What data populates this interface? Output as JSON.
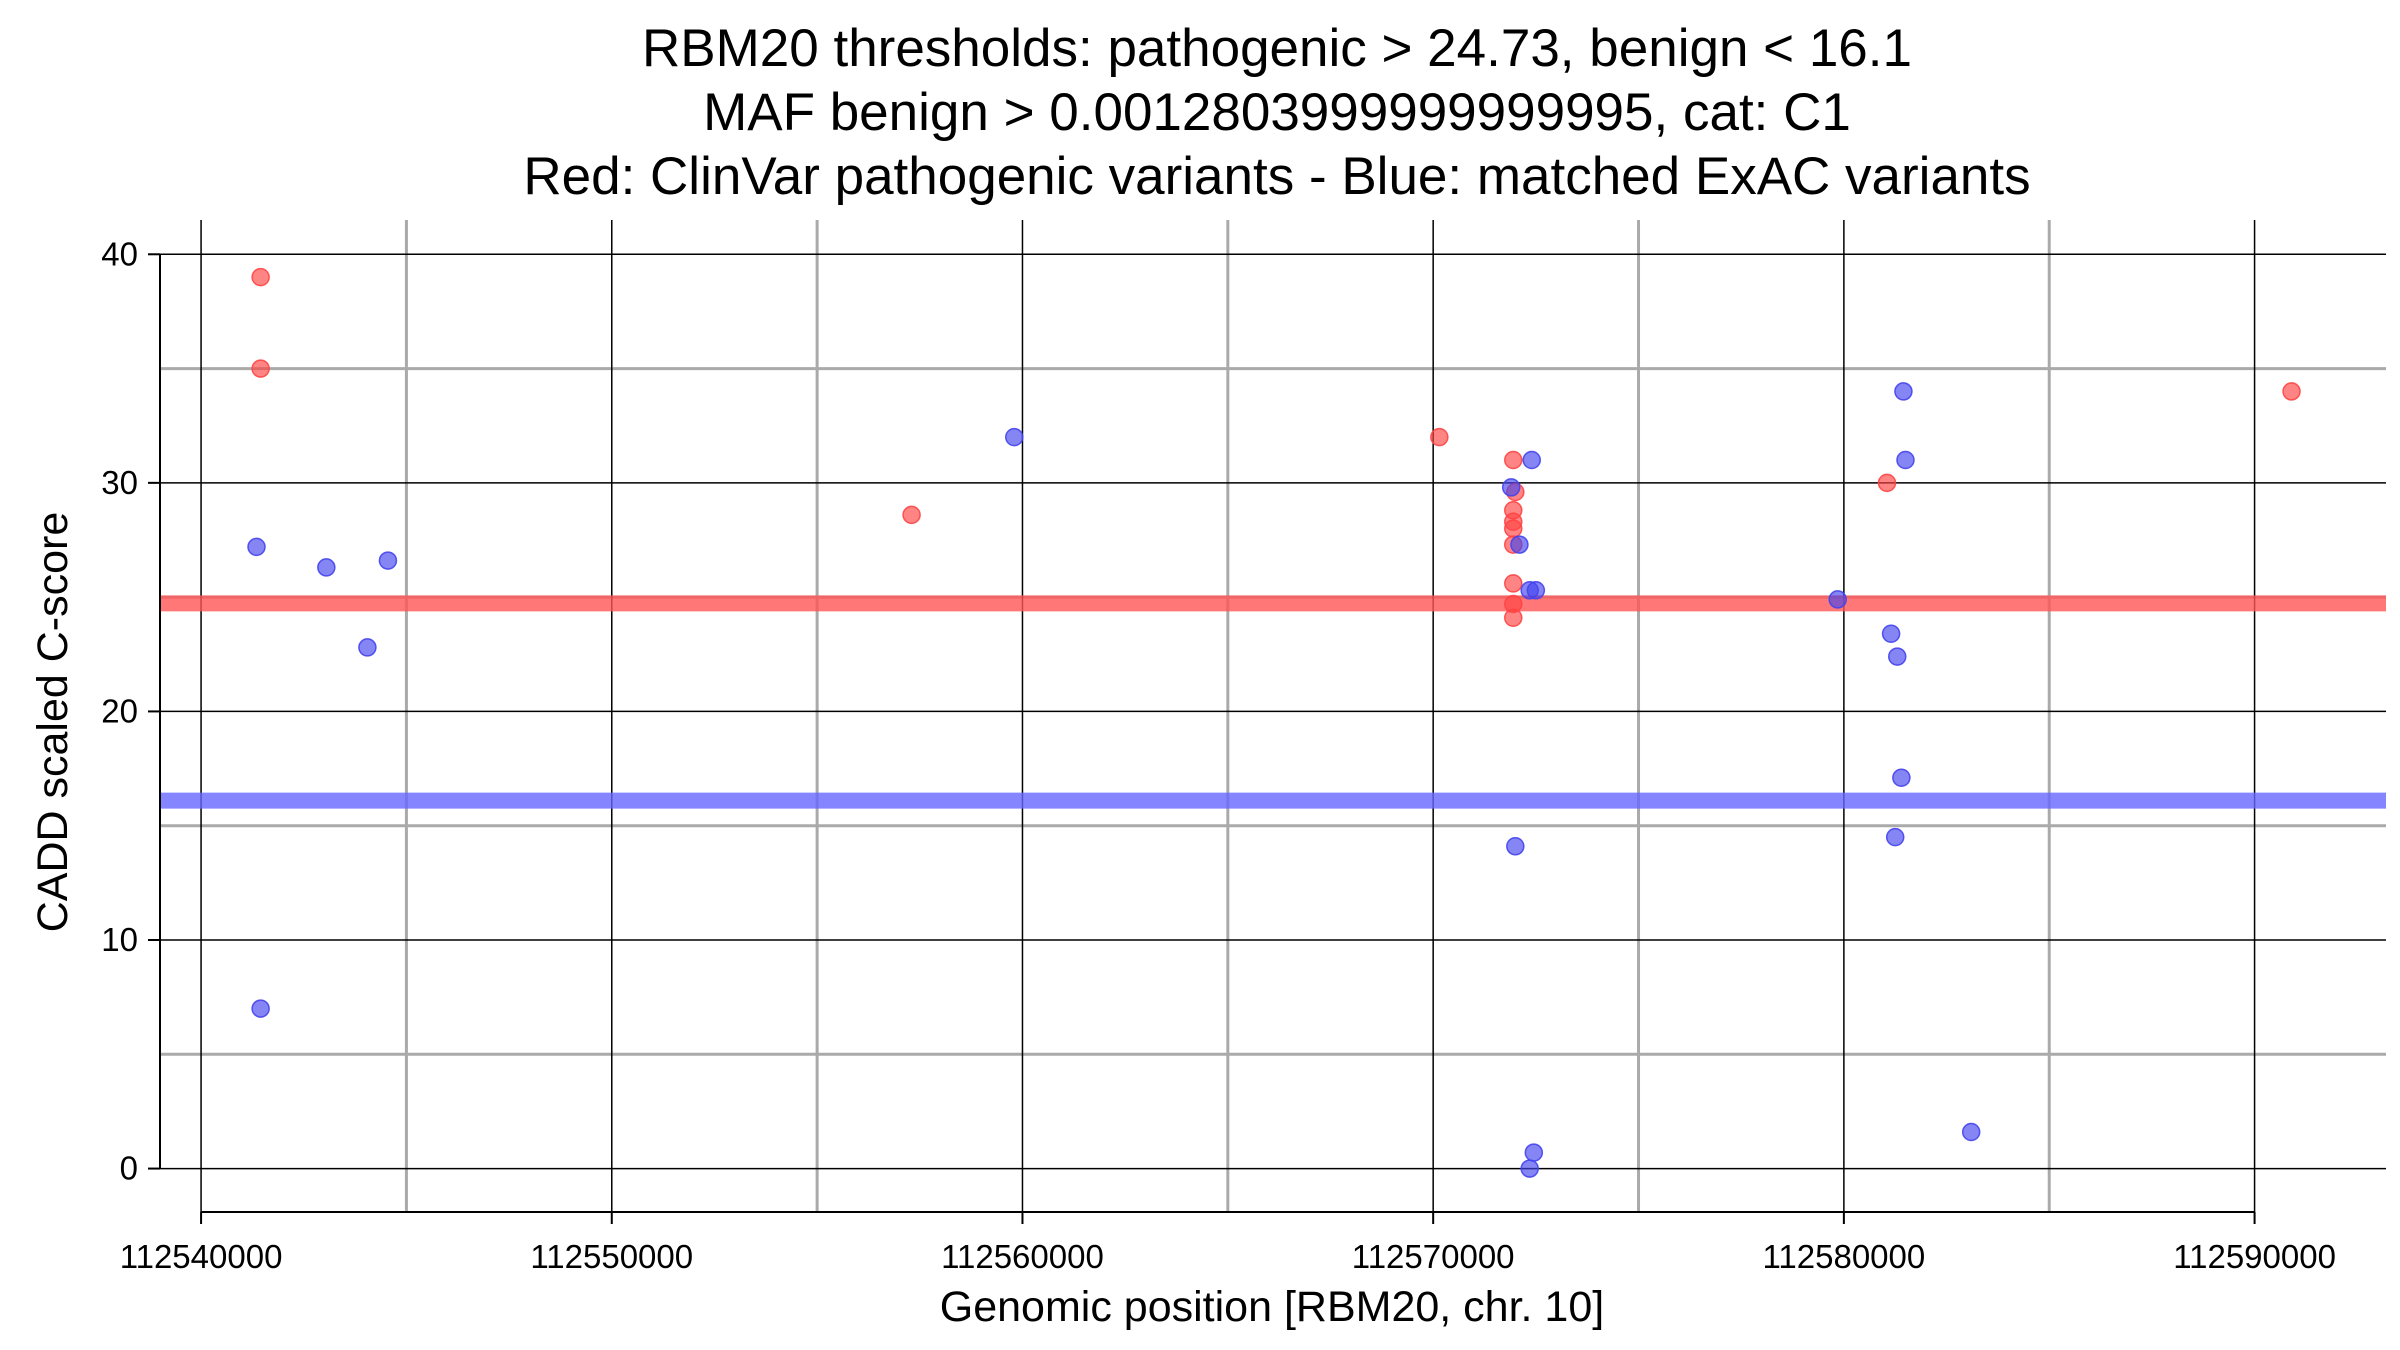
{
  "chart_data": {
    "type": "scatter",
    "title": [
      "RBM20 thresholds: pathogenic > 24.73, benign < 16.1",
      "MAF benign > 0.0012803999999999995, cat: C1",
      "Red: ClinVar pathogenic variants - Blue: matched ExAC variants"
    ],
    "xlabel": "Genomic position [RBM20, chr. 10]",
    "ylabel": "CADD scaled C-score",
    "xlim": [
      112539000,
      112593200
    ],
    "ylim": [
      -1.9,
      41.5
    ],
    "x_ticks": [
      112540000,
      112550000,
      112560000,
      112570000,
      112580000,
      112590000
    ],
    "x_tick_labels": [
      "112540000",
      "112550000",
      "112560000",
      "112570000",
      "112580000",
      "112590000"
    ],
    "y_ticks": [
      0,
      10,
      20,
      30,
      40
    ],
    "y_tick_labels": [
      "0",
      "10",
      "20",
      "30",
      "40"
    ],
    "x_minor_grid": [
      112545000,
      112555000,
      112565000,
      112575000,
      112585000
    ],
    "y_minor_grid": [
      5,
      15,
      25,
      35
    ],
    "thresholds": [
      {
        "name": "pathogenic",
        "value": 24.73,
        "color": "#ff5555"
      },
      {
        "name": "benign",
        "value": 16.1,
        "color": "#6666ff"
      }
    ],
    "colors": {
      "pathogenic_point": "#ff4444",
      "benign_point": "#4444ee",
      "major_grid": "#000000",
      "minor_grid": "#aaaaaa"
    },
    "series": [
      {
        "name": "ClinVar pathogenic",
        "color": "#ff4444",
        "points": [
          [
            112541450,
            39.0
          ],
          [
            112541450,
            35.0
          ],
          [
            112557300,
            28.6
          ],
          [
            112570150,
            32.0
          ],
          [
            112571950,
            31.0
          ],
          [
            112572000,
            29.6
          ],
          [
            112571950,
            28.8
          ],
          [
            112571950,
            28.3
          ],
          [
            112571950,
            28.0
          ],
          [
            112571950,
            27.3
          ],
          [
            112571950,
            25.6
          ],
          [
            112571950,
            24.7
          ],
          [
            112571950,
            24.1
          ],
          [
            112581050,
            30.0
          ],
          [
            112590900,
            34.0
          ]
        ]
      },
      {
        "name": "matched ExAC",
        "color": "#4444ee",
        "points": [
          [
            112541350,
            27.2
          ],
          [
            112543050,
            26.3
          ],
          [
            112544550,
            26.6
          ],
          [
            112544050,
            22.8
          ],
          [
            112541450,
            7.0
          ],
          [
            112559800,
            32.0
          ],
          [
            112572400,
            31.0
          ],
          [
            112571900,
            29.8
          ],
          [
            112572100,
            27.3
          ],
          [
            112572350,
            25.3
          ],
          [
            112572500,
            25.3
          ],
          [
            112572000,
            14.1
          ],
          [
            112572450,
            0.7
          ],
          [
            112572350,
            0.0
          ],
          [
            112579850,
            24.9
          ],
          [
            112581150,
            23.4
          ],
          [
            112581300,
            22.4
          ],
          [
            112581450,
            34.0
          ],
          [
            112581500,
            31.0
          ],
          [
            112581400,
            17.1
          ],
          [
            112581250,
            14.5
          ],
          [
            112583100,
            1.6
          ]
        ]
      }
    ]
  }
}
